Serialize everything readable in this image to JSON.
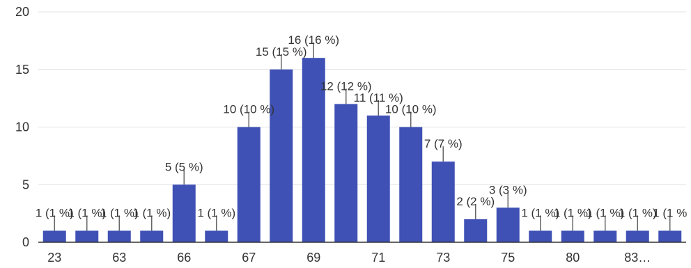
{
  "chart_data": {
    "type": "bar",
    "categories": [
      "23",
      "",
      "63",
      "",
      "66",
      "",
      "67",
      "",
      "69",
      "",
      "71",
      "",
      "73",
      "",
      "75",
      "",
      "80",
      "",
      "83…",
      ""
    ],
    "values": [
      1,
      1,
      1,
      1,
      5,
      1,
      10,
      15,
      16,
      12,
      11,
      10,
      7,
      2,
      3,
      1,
      1,
      1,
      1,
      1
    ],
    "data_labels": [
      "1 (1 %)",
      "1 (1 %)",
      "1 (1 %)",
      "1 (1 %)",
      "5 (5 %)",
      "1 (1 %)",
      "10 (10 %)",
      "15 (15 %)",
      "16 (16 %)",
      "12 (12 %)",
      "11 (11 %)",
      "10 (10 %)",
      "7 (7 %)",
      "2 (2 %)",
      "3 (3 %)",
      "1 (1 %)",
      "1 (1 %)",
      "1 (1 %)",
      "1 (1 %)",
      "1 (1 %"
    ],
    "x_tick_labels": [
      "23",
      "63",
      "66",
      "67",
      "69",
      "71",
      "73",
      "75",
      "80",
      "83…"
    ],
    "y_ticks": [
      0,
      5,
      10,
      15,
      20
    ],
    "ylim": [
      0,
      20
    ],
    "title": "",
    "xlabel": "",
    "ylabel": "",
    "grid": true,
    "bar_color": "#3f51b5",
    "grid_color": "#e0e0e0",
    "axis_color": "#333333"
  }
}
